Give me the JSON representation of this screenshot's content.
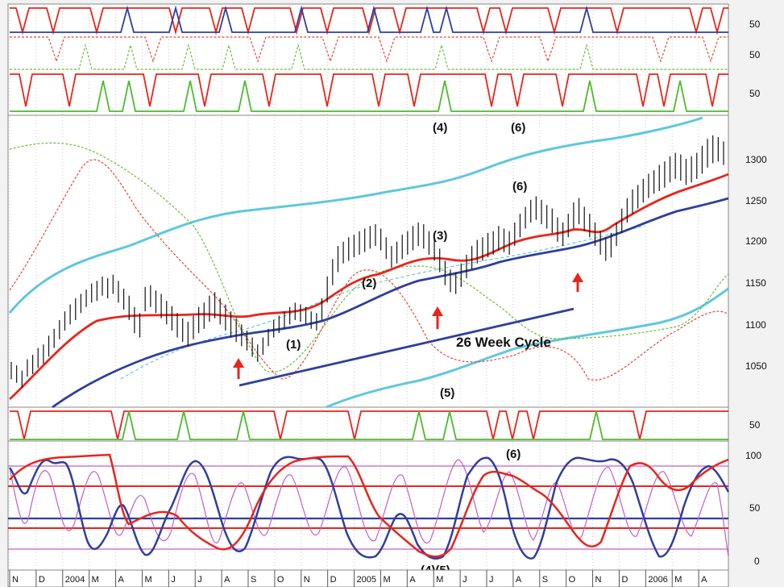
{
  "colors": {
    "red": "#e8251c",
    "blue": "#2f3f9f",
    "green": "#4cbb2c",
    "cyan": "#5ec8dc",
    "purple": "#c060c8",
    "red_dash": "#e24a3c",
    "green_dash": "#6cbf3a",
    "grid": "#bdbdbd"
  },
  "right_axis_labels": {
    "cycle_panel": [
      "50",
      "50",
      "50"
    ],
    "price": [
      "1300",
      "1250",
      "1200",
      "1150",
      "1100",
      "1050"
    ],
    "mid_cycle": "50",
    "oscillator": [
      "100",
      "50",
      "0"
    ]
  },
  "x_axis": {
    "labels": [
      "N",
      "D",
      "2004",
      "M",
      "A",
      "M",
      "J",
      "J",
      "A",
      "S",
      "O",
      "N",
      "D",
      "2005",
      "M",
      "A",
      "M",
      "J",
      "J",
      "A",
      "S",
      "O",
      "N",
      "D",
      "2006",
      "M",
      "A"
    ]
  },
  "annotations": {
    "top_4": "(4)",
    "top_6": "(6)",
    "wave_1": "(1)",
    "wave_2": "(2)",
    "wave_3": "(3)",
    "wave_6": "(6)",
    "cycle_label": "26 Week Cycle",
    "wave_5": "(5)",
    "osc_6": "(6)",
    "osc_45": "(4)(5)"
  },
  "chart_data": [
    {
      "type": "line",
      "panel": "cycle signals (top)",
      "axis_labels": [
        50,
        50,
        50
      ]
    },
    {
      "type": "bar",
      "panel": "price",
      "y_ticks": [
        1050,
        1100,
        1150,
        1200,
        1250,
        1300
      ],
      "ylim": [
        1010,
        1345
      ],
      "x_labels": [
        "N",
        "D",
        "2004",
        "M",
        "A",
        "M",
        "J",
        "J",
        "A",
        "S",
        "O",
        "N",
        "D",
        "2005",
        "M",
        "A",
        "M",
        "J",
        "J",
        "A",
        "S",
        "O",
        "N",
        "D",
        "2006",
        "M",
        "A"
      ],
      "price_bars": [
        [
          1042,
          1062
        ],
        [
          1038,
          1058
        ],
        [
          1032,
          1052
        ],
        [
          1045,
          1065
        ],
        [
          1048,
          1070
        ],
        [
          1055,
          1078
        ],
        [
          1060,
          1082
        ],
        [
          1068,
          1092
        ],
        [
          1078,
          1100
        ],
        [
          1088,
          1110
        ],
        [
          1098,
          1120
        ],
        [
          1105,
          1128
        ],
        [
          1110,
          1135
        ],
        [
          1118,
          1140
        ],
        [
          1125,
          1145
        ],
        [
          1130,
          1152
        ],
        [
          1132,
          1155
        ],
        [
          1138,
          1160
        ],
        [
          1135,
          1158
        ],
        [
          1140,
          1162
        ],
        [
          1130,
          1155
        ],
        [
          1122,
          1146
        ],
        [
          1110,
          1138
        ],
        [
          1095,
          1125
        ],
        [
          1090,
          1118
        ],
        [
          1120,
          1148
        ],
        [
          1125,
          1150
        ],
        [
          1118,
          1144
        ],
        [
          1112,
          1140
        ],
        [
          1105,
          1132
        ],
        [
          1098,
          1126
        ],
        [
          1090,
          1118
        ],
        [
          1085,
          1112
        ],
        [
          1080,
          1108
        ],
        [
          1088,
          1115
        ],
        [
          1095,
          1125
        ],
        [
          1100,
          1130
        ],
        [
          1108,
          1138
        ],
        [
          1112,
          1142
        ],
        [
          1105,
          1135
        ],
        [
          1098,
          1128
        ],
        [
          1090,
          1120
        ],
        [
          1085,
          1112
        ],
        [
          1080,
          1105
        ],
        [
          1075,
          1098
        ],
        [
          1068,
          1090
        ],
        [
          1062,
          1082
        ],
        [
          1070,
          1090
        ],
        [
          1080,
          1100
        ],
        [
          1090,
          1110
        ],
        [
          1095,
          1115
        ],
        [
          1100,
          1120
        ],
        [
          1105,
          1125
        ],
        [
          1110,
          1130
        ],
        [
          1108,
          1128
        ],
        [
          1105,
          1125
        ],
        [
          1100,
          1120
        ],
        [
          1098,
          1118
        ],
        [
          1110,
          1135
        ],
        [
          1130,
          1160
        ],
        [
          1150,
          1180
        ],
        [
          1165,
          1195
        ],
        [
          1175,
          1200
        ],
        [
          1178,
          1205
        ],
        [
          1182,
          1208
        ],
        [
          1185,
          1212
        ],
        [
          1188,
          1215
        ],
        [
          1192,
          1218
        ],
        [
          1195,
          1220
        ],
        [
          1190,
          1215
        ],
        [
          1180,
          1205
        ],
        [
          1170,
          1195
        ],
        [
          1175,
          1200
        ],
        [
          1180,
          1208
        ],
        [
          1185,
          1212
        ],
        [
          1190,
          1218
        ],
        [
          1195,
          1222
        ],
        [
          1192,
          1220
        ],
        [
          1185,
          1212
        ],
        [
          1178,
          1205
        ],
        [
          1165,
          1192
        ],
        [
          1150,
          1178
        ],
        [
          1142,
          1168
        ],
        [
          1140,
          1165
        ],
        [
          1148,
          1175
        ],
        [
          1158,
          1185
        ],
        [
          1168,
          1195
        ],
        [
          1175,
          1202
        ],
        [
          1178,
          1205
        ],
        [
          1182,
          1210
        ],
        [
          1185,
          1212
        ],
        [
          1190,
          1218
        ],
        [
          1188,
          1215
        ],
        [
          1185,
          1212
        ],
        [
          1195,
          1222
        ],
        [
          1205,
          1232
        ],
        [
          1215,
          1240
        ],
        [
          1222,
          1248
        ],
        [
          1225,
          1252
        ],
        [
          1220,
          1248
        ],
        [
          1215,
          1242
        ],
        [
          1210,
          1238
        ],
        [
          1200,
          1228
        ],
        [
          1195,
          1222
        ],
        [
          1205,
          1232
        ],
        [
          1215,
          1245
        ],
        [
          1220,
          1250
        ],
        [
          1212,
          1240
        ],
        [
          1205,
          1232
        ],
        [
          1195,
          1222
        ],
        [
          1185,
          1212
        ],
        [
          1178,
          1205
        ],
        [
          1182,
          1210
        ],
        [
          1195,
          1222
        ],
        [
          1210,
          1238
        ],
        [
          1222,
          1250
        ],
        [
          1232,
          1260
        ],
        [
          1238,
          1265
        ],
        [
          1245,
          1272
        ],
        [
          1250,
          1278
        ],
        [
          1255,
          1282
        ],
        [
          1258,
          1288
        ],
        [
          1262,
          1292
        ],
        [
          1268,
          1298
        ],
        [
          1272,
          1302
        ],
        [
          1270,
          1300
        ],
        [
          1265,
          1295
        ],
        [
          1268,
          1298
        ],
        [
          1272,
          1302
        ],
        [
          1278,
          1310
        ],
        [
          1285,
          1318
        ],
        [
          1290,
          1322
        ],
        [
          1292,
          1320
        ],
        [
          1288,
          1315
        ]
      ]
    },
    {
      "type": "line",
      "panel": "oscillator",
      "y_ticks": [
        0,
        50,
        100
      ],
      "ylim": [
        0,
        100
      ]
    }
  ]
}
